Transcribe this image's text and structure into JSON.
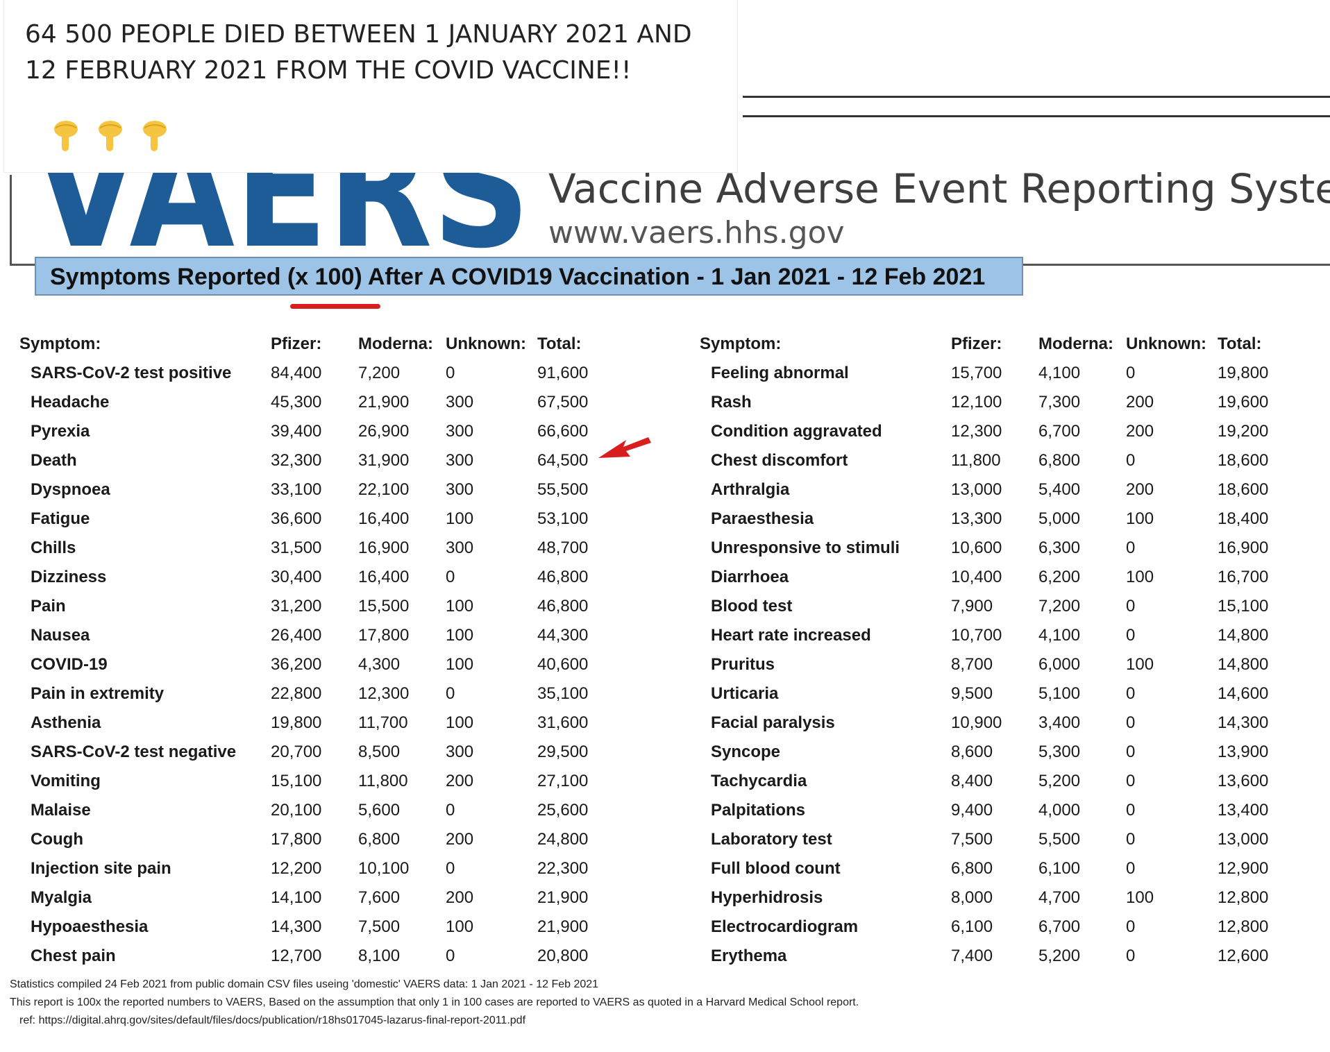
{
  "post": {
    "text": "64 500 PEOPLE DIED BETWEEN 1 JANUARY 2021 AND 12 FEBRUARY 2021 FROM THE COVID VACCINE!!",
    "emoji_icons": [
      "pointing-down-hand-icon",
      "pointing-down-hand-icon",
      "pointing-down-hand-icon"
    ]
  },
  "document": {
    "logo_text": "VAERS",
    "title": "Vaccine Adverse Event Reporting System",
    "url": "www.vaers.hhs.gov",
    "banner": "Symptoms Reported (x 100) After A COVID19 Vaccination - 1 Jan 2021 - 12 Feb 2021",
    "colors": {
      "logo": "#1d5c96",
      "banner": "#9dc3e6",
      "annotation": "#d91e1e"
    }
  },
  "table": {
    "headers": [
      "Symptom:",
      "Pfizer:",
      "Moderna:",
      "Unknown:",
      "Total:"
    ],
    "left_rows": [
      [
        "SARS-CoV-2 test positive",
        "84,400",
        "7,200",
        "0",
        "91,600"
      ],
      [
        "Headache",
        "45,300",
        "21,900",
        "300",
        "67,500"
      ],
      [
        "Pyrexia",
        "39,400",
        "26,900",
        "300",
        "66,600"
      ],
      [
        "Death",
        "32,300",
        "31,900",
        "300",
        "64,500"
      ],
      [
        "Dyspnoea",
        "33,100",
        "22,100",
        "300",
        "55,500"
      ],
      [
        "Fatigue",
        "36,600",
        "16,400",
        "100",
        "53,100"
      ],
      [
        "Chills",
        "31,500",
        "16,900",
        "300",
        "48,700"
      ],
      [
        "Dizziness",
        "30,400",
        "16,400",
        "0",
        "46,800"
      ],
      [
        "Pain",
        "31,200",
        "15,500",
        "100",
        "46,800"
      ],
      [
        "Nausea",
        "26,400",
        "17,800",
        "100",
        "44,300"
      ],
      [
        "COVID-19",
        "36,200",
        "4,300",
        "100",
        "40,600"
      ],
      [
        "Pain in extremity",
        "22,800",
        "12,300",
        "0",
        "35,100"
      ],
      [
        "Asthenia",
        "19,800",
        "11,700",
        "100",
        "31,600"
      ],
      [
        "SARS-CoV-2 test negative",
        "20,700",
        "8,500",
        "300",
        "29,500"
      ],
      [
        "Vomiting",
        "15,100",
        "11,800",
        "200",
        "27,100"
      ],
      [
        "Malaise",
        "20,100",
        "5,600",
        "0",
        "25,600"
      ],
      [
        "Cough",
        "17,800",
        "6,800",
        "200",
        "24,800"
      ],
      [
        "Injection site pain",
        "12,200",
        "10,100",
        "0",
        "22,300"
      ],
      [
        "Myalgia",
        "14,100",
        "7,600",
        "200",
        "21,900"
      ],
      [
        "Hypoaesthesia",
        "14,300",
        "7,500",
        "100",
        "21,900"
      ],
      [
        "Chest pain",
        "12,700",
        "8,100",
        "0",
        "20,800"
      ]
    ],
    "right_rows": [
      [
        "Feeling abnormal",
        "15,700",
        "4,100",
        "0",
        "19,800"
      ],
      [
        "Rash",
        "12,100",
        "7,300",
        "200",
        "19,600"
      ],
      [
        "Condition aggravated",
        "12,300",
        "6,700",
        "200",
        "19,200"
      ],
      [
        "Chest discomfort",
        "11,800",
        "6,800",
        "0",
        "18,600"
      ],
      [
        "Arthralgia",
        "13,000",
        "5,400",
        "200",
        "18,600"
      ],
      [
        "Paraesthesia",
        "13,300",
        "5,000",
        "100",
        "18,400"
      ],
      [
        "Unresponsive to stimuli",
        "10,600",
        "6,300",
        "0",
        "16,900"
      ],
      [
        "Diarrhoea",
        "10,400",
        "6,200",
        "100",
        "16,700"
      ],
      [
        "Blood test",
        "7,900",
        "7,200",
        "0",
        "15,100"
      ],
      [
        "Heart rate increased",
        "10,700",
        "4,100",
        "0",
        "14,800"
      ],
      [
        "Pruritus",
        "8,700",
        "6,000",
        "100",
        "14,800"
      ],
      [
        "Urticaria",
        "9,500",
        "5,100",
        "0",
        "14,600"
      ],
      [
        "Facial paralysis",
        "10,900",
        "3,400",
        "0",
        "14,300"
      ],
      [
        "Syncope",
        "8,600",
        "5,300",
        "0",
        "13,900"
      ],
      [
        "Tachycardia",
        "8,400",
        "5,200",
        "0",
        "13,600"
      ],
      [
        "Palpitations",
        "9,400",
        "4,000",
        "0",
        "13,400"
      ],
      [
        "Laboratory test",
        "7,500",
        "5,500",
        "0",
        "13,000"
      ],
      [
        "Full blood count",
        "6,800",
        "6,100",
        "0",
        "12,900"
      ],
      [
        "Hyperhidrosis",
        "8,000",
        "4,700",
        "100",
        "12,800"
      ],
      [
        "Electrocardiogram",
        "6,100",
        "6,700",
        "0",
        "12,800"
      ],
      [
        "Erythema",
        "7,400",
        "5,200",
        "0",
        "12,600"
      ]
    ]
  },
  "footnote": {
    "line1": "Statistics compiled 24 Feb 2021 from public domain CSV files useing 'domestic' VAERS data: 1 Jan 2021 - 12 Feb 2021",
    "line2": "This report is 100x the reported numbers to VAERS, Based on the assumption that only 1 in 100 cases are reported to VAERS as quoted in a Harvard Medical School report.",
    "line3": "ref: https://digital.ahrq.gov/sites/default/files/docs/publication/r18hs017045-lazarus-final-report-2011.pdf"
  }
}
